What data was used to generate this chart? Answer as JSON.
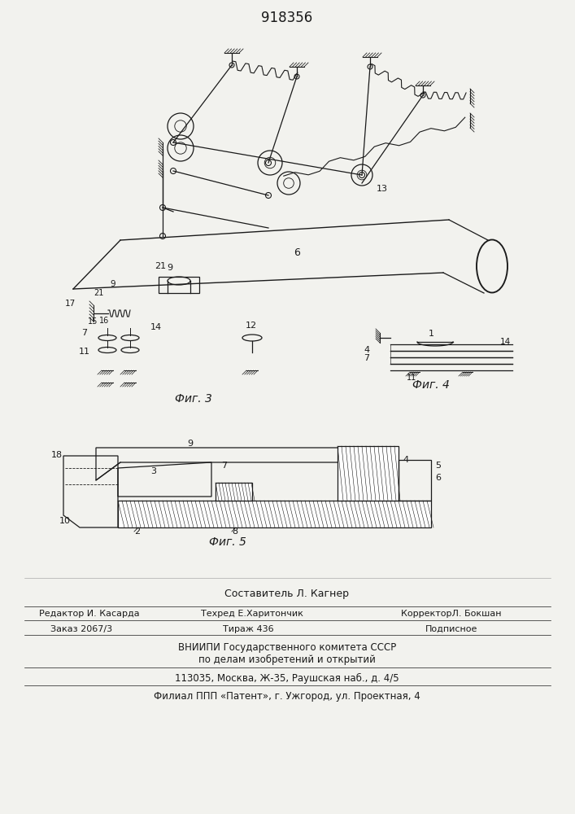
{
  "title": "918356",
  "bg_color": "#f2f2ee",
  "line_color": "#1a1a1a",
  "fig3_label": "Фиг. 3",
  "fig4_label": "Фиг. 4",
  "fig5_label": "Фиг. 5",
  "title_fontsize": 12,
  "footer": {
    "line1": "Составитель Л. Кагнер",
    "line2a": "Редактор И. Касарда",
    "line2b": "Техред Е.Харитончик",
    "line2c": "КорректорЛ. Бокшан",
    "line3a": "Заказ 2067/3",
    "line3b": "Тираж 436",
    "line3c": "Подписное",
    "line4": "ВНИИПИ Государственного комитета СССР",
    "line5": "по делам изобретений и открытий",
    "line6": "113035, Москва, Ж-35, Раушская наб., д. 4/5",
    "line7": "Филиал ППП «Патент», г. Ужгород, ул. Проектная, 4"
  }
}
